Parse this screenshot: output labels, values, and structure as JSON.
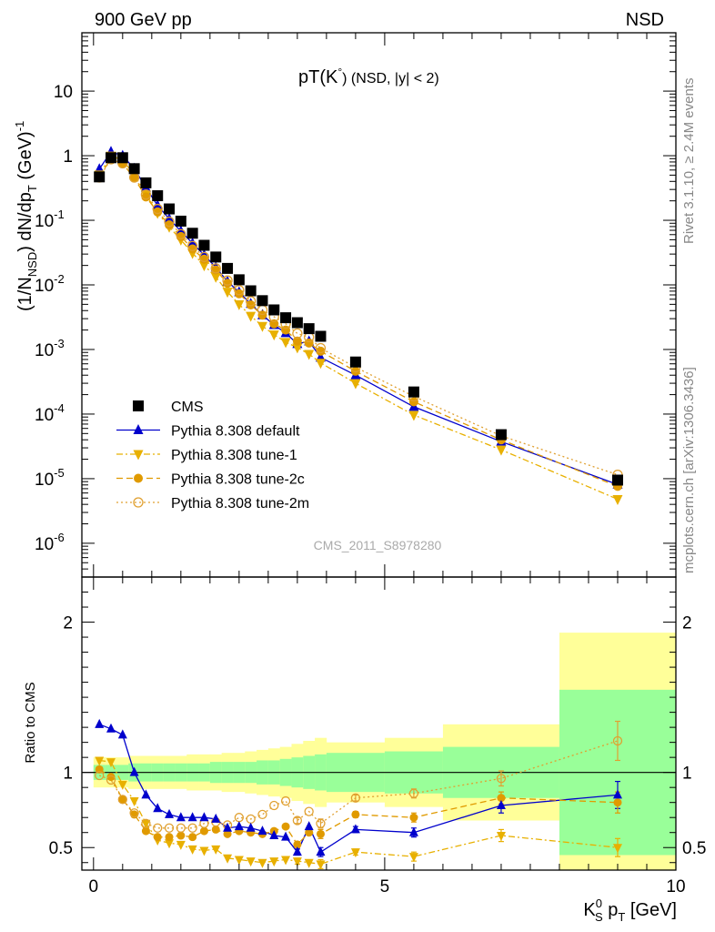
{
  "header": {
    "left_label": "900 GeV pp",
    "right_label": "NSD",
    "side_label_top": "Rivet 3.1.10, ≥ 2.4M events",
    "side_label_bottom": "mcplots.cern.ch [arXiv:1306.3436]",
    "watermark": "CMS_2011_S8978280"
  },
  "chart_data": [
    {
      "type": "scatter",
      "panel": "main",
      "title": "pT(K°) (NSD, |y| < 2)",
      "title_main": "pT(K",
      "title_sup": "°",
      "title_rest": ") (NSD, |y| < 2)",
      "ylabel": "(1/N_NSD) dN/dp_T (GeV)^-1",
      "ylabel_parts": {
        "a": "(1/N",
        "sub": "NSD",
        "b": ") dN/dp",
        "sub2": "T",
        "c": " (GeV)",
        "sup": "-1"
      },
      "yscale": "log",
      "ylim": [
        3e-07,
        80
      ],
      "xlim": [
        -0.2,
        10
      ],
      "y_tick_labels": [
        {
          "v": 10,
          "m": "10",
          "e": ""
        },
        {
          "v": 1,
          "m": "1",
          "e": ""
        },
        {
          "v": 0.1,
          "m": "10",
          "e": "-1"
        },
        {
          "v": 0.01,
          "m": "10",
          "e": "-2"
        },
        {
          "v": 0.001,
          "m": "10",
          "e": "-3"
        },
        {
          "v": 0.0001,
          "m": "10",
          "e": "-4"
        },
        {
          "v": 1e-05,
          "m": "10",
          "e": "-5"
        },
        {
          "v": 1e-06,
          "m": "10",
          "e": "-6"
        }
      ],
      "legend_position": "lower-left",
      "series": [
        {
          "name": "CMS",
          "color": "#000000",
          "marker": "square",
          "x": [
            0.1,
            0.3,
            0.5,
            0.7,
            0.9,
            1.1,
            1.3,
            1.5,
            1.7,
            1.9,
            2.1,
            2.3,
            2.5,
            2.7,
            2.9,
            3.1,
            3.3,
            3.5,
            3.7,
            3.9,
            4.5,
            5.5,
            7.0,
            9.0
          ],
          "y": [
            0.47,
            0.93,
            0.93,
            0.63,
            0.38,
            0.24,
            0.15,
            0.097,
            0.063,
            0.041,
            0.027,
            0.018,
            0.012,
            0.0081,
            0.0057,
            0.0041,
            0.0031,
            0.0026,
            0.0021,
            0.0016,
            0.00064,
            0.00022,
            4.8e-05,
            9.5e-06
          ]
        },
        {
          "name": "Pythia 8.308 default",
          "color": "#0000cc",
          "marker": "triangle-up",
          "line": "solid",
          "x": [
            0.1,
            0.3,
            0.5,
            0.7,
            0.9,
            1.1,
            1.3,
            1.5,
            1.7,
            1.9,
            2.1,
            2.3,
            2.5,
            2.7,
            2.9,
            3.1,
            3.3,
            3.5,
            3.7,
            3.9,
            4.5,
            5.5,
            7.0,
            9.0
          ],
          "y": [
            0.62,
            1.15,
            1.0,
            0.63,
            0.32,
            0.17,
            0.105,
            0.068,
            0.044,
            0.029,
            0.0187,
            0.0113,
            0.0077,
            0.0051,
            0.0034,
            0.0024,
            0.0018,
            0.00122,
            0.00134,
            0.00075,
            0.0004,
            0.00013,
            3.75e-05,
            8.1e-06
          ]
        },
        {
          "name": "Pythia 8.308 tune-1",
          "color": "#e8b000",
          "marker": "triangle-down",
          "line": "dashdot",
          "x": [
            0.1,
            0.3,
            0.5,
            0.7,
            0.9,
            1.1,
            1.3,
            1.5,
            1.7,
            1.9,
            2.1,
            2.3,
            2.5,
            2.7,
            2.9,
            3.1,
            3.3,
            3.5,
            3.7,
            3.9,
            4.5,
            5.5,
            7.0,
            9.0
          ],
          "y": [
            0.51,
            1.0,
            0.85,
            0.51,
            0.25,
            0.13,
            0.079,
            0.05,
            0.031,
            0.02,
            0.0133,
            0.0078,
            0.005,
            0.0033,
            0.0023,
            0.0017,
            0.0013,
            0.00107,
            0.00085,
            0.00062,
            0.0003,
            9.68e-05,
            2.8e-05,
            4.8e-06
          ]
        },
        {
          "name": "Pythia 8.308 tune-2c",
          "color": "#e09a00",
          "marker": "circle",
          "line": "dashed",
          "x": [
            0.1,
            0.3,
            0.5,
            0.7,
            0.9,
            1.1,
            1.3,
            1.5,
            1.7,
            1.9,
            2.1,
            2.3,
            2.5,
            2.7,
            2.9,
            3.1,
            3.3,
            3.5,
            3.7,
            3.9,
            4.5,
            5.5,
            7.0,
            9.0
          ],
          "y": [
            0.48,
            0.9,
            0.76,
            0.45,
            0.23,
            0.135,
            0.085,
            0.056,
            0.036,
            0.025,
            0.017,
            0.0106,
            0.0073,
            0.0049,
            0.0034,
            0.0025,
            0.002,
            0.00135,
            0.00126,
            0.00094,
            0.00046,
            0.000155,
            4e-05,
            7.6e-06
          ]
        },
        {
          "name": "Pythia 8.308 tune-2m",
          "color": "#e0a030",
          "marker": "open-circle",
          "line": "dotted",
          "x": [
            0.1,
            0.3,
            0.5,
            0.7,
            0.9,
            1.1,
            1.3,
            1.5,
            1.7,
            1.9,
            2.1,
            2.3,
            2.5,
            2.7,
            2.9,
            3.1,
            3.3,
            3.5,
            3.7,
            3.9,
            4.5,
            5.5,
            7.0,
            9.0
          ],
          "y": [
            0.46,
            0.88,
            0.76,
            0.46,
            0.25,
            0.15,
            0.095,
            0.061,
            0.04,
            0.027,
            0.018,
            0.0117,
            0.0083,
            0.0056,
            0.0041,
            0.0032,
            0.0025,
            0.00177,
            0.00155,
            0.00105,
            0.00053,
            0.000188,
            4.6e-05,
            1.15e-05
          ]
        }
      ]
    },
    {
      "type": "scatter",
      "panel": "ratio",
      "ylabel": "Ratio to CMS",
      "xlabel": "K_S^0 p_T [GeV]",
      "xlabel_parts": {
        "a": "K",
        "sub": "S",
        "sup": "0",
        "b": " p",
        "sub2": "T",
        "c": " [GeV]"
      },
      "xlim": [
        -0.2,
        10
      ],
      "ylim": [
        0.35,
        2.3
      ],
      "x_ticks": [
        0,
        5,
        10
      ],
      "y_ticks": [
        0.5,
        1,
        2
      ],
      "reference_line": 1,
      "bins": [
        {
          "x0": 0.0,
          "x1": 0.2,
          "g": 0.05,
          "y": 0.1
        },
        {
          "x0": 0.2,
          "x1": 0.4,
          "g": 0.05,
          "y": 0.1
        },
        {
          "x0": 0.4,
          "x1": 0.6,
          "g": 0.05,
          "y": 0.1
        },
        {
          "x0": 0.6,
          "x1": 0.8,
          "g": 0.06,
          "y": 0.11
        },
        {
          "x0": 0.8,
          "x1": 1.0,
          "g": 0.06,
          "y": 0.11
        },
        {
          "x0": 1.0,
          "x1": 1.2,
          "g": 0.06,
          "y": 0.11
        },
        {
          "x0": 1.2,
          "x1": 1.4,
          "g": 0.06,
          "y": 0.11
        },
        {
          "x0": 1.4,
          "x1": 1.6,
          "g": 0.06,
          "y": 0.11
        },
        {
          "x0": 1.6,
          "x1": 1.8,
          "g": 0.06,
          "y": 0.12
        },
        {
          "x0": 1.8,
          "x1": 2.0,
          "g": 0.06,
          "y": 0.12
        },
        {
          "x0": 2.0,
          "x1": 2.2,
          "g": 0.07,
          "y": 0.12
        },
        {
          "x0": 2.2,
          "x1": 2.4,
          "g": 0.07,
          "y": 0.13
        },
        {
          "x0": 2.4,
          "x1": 2.6,
          "g": 0.07,
          "y": 0.13
        },
        {
          "x0": 2.6,
          "x1": 2.8,
          "g": 0.07,
          "y": 0.14
        },
        {
          "x0": 2.8,
          "x1": 3.0,
          "g": 0.08,
          "y": 0.15
        },
        {
          "x0": 3.0,
          "x1": 3.2,
          "g": 0.08,
          "y": 0.16
        },
        {
          "x0": 3.2,
          "x1": 3.4,
          "g": 0.09,
          "y": 0.17
        },
        {
          "x0": 3.4,
          "x1": 3.6,
          "g": 0.1,
          "y": 0.19
        },
        {
          "x0": 3.6,
          "x1": 3.8,
          "g": 0.11,
          "y": 0.21
        },
        {
          "x0": 3.8,
          "x1": 4.0,
          "g": 0.12,
          "y": 0.23
        },
        {
          "x0": 4.0,
          "x1": 5.0,
          "g": 0.13,
          "y": 0.2
        },
        {
          "x0": 5.0,
          "x1": 6.0,
          "g": 0.14,
          "y": 0.23
        },
        {
          "x0": 6.0,
          "x1": 8.0,
          "g": 0.17,
          "y": 0.32
        },
        {
          "x0": 8.0,
          "x1": 10.0,
          "g": 0.55,
          "y": 0.93
        }
      ],
      "series": [
        {
          "name": "Pythia 8.308 default",
          "color": "#0000cc",
          "marker": "triangle-up",
          "line": "solid",
          "x": [
            0.1,
            0.3,
            0.5,
            0.7,
            0.9,
            1.1,
            1.3,
            1.5,
            1.7,
            1.9,
            2.1,
            2.3,
            2.5,
            2.7,
            2.9,
            3.1,
            3.3,
            3.5,
            3.7,
            3.9,
            4.5,
            5.5,
            7.0,
            9.0
          ],
          "y": [
            1.32,
            1.29,
            1.25,
            1.0,
            0.85,
            0.76,
            0.72,
            0.7,
            0.7,
            0.7,
            0.69,
            0.63,
            0.64,
            0.63,
            0.61,
            0.58,
            0.57,
            0.47,
            0.64,
            0.47,
            0.62,
            0.6,
            0.78,
            0.85
          ],
          "err": [
            0,
            0,
            0,
            0,
            0,
            0,
            0,
            0,
            0,
            0,
            0,
            0,
            0,
            0,
            0,
            0,
            0,
            0.02,
            0,
            0.03,
            0.02,
            0.03,
            0.05,
            0.09
          ]
        },
        {
          "name": "Pythia 8.308 tune-1",
          "color": "#e8b000",
          "marker": "triangle-down",
          "line": "dashdot",
          "x": [
            0.1,
            0.3,
            0.5,
            0.7,
            0.9,
            1.1,
            1.3,
            1.5,
            1.7,
            1.9,
            2.1,
            2.3,
            2.5,
            2.7,
            2.9,
            3.1,
            3.3,
            3.5,
            3.7,
            3.9,
            4.5,
            5.5,
            7.0,
            9.0
          ],
          "y": [
            1.08,
            1.07,
            0.92,
            0.81,
            0.66,
            0.55,
            0.53,
            0.52,
            0.49,
            0.48,
            0.49,
            0.43,
            0.42,
            0.41,
            0.4,
            0.41,
            0.42,
            0.41,
            0.4,
            0.39,
            0.47,
            0.44,
            0.58,
            0.5
          ],
          "err": [
            0,
            0,
            0,
            0,
            0,
            0,
            0,
            0,
            0,
            0,
            0,
            0,
            0,
            0,
            0,
            0,
            0,
            0.02,
            0,
            0.03,
            0.02,
            0.03,
            0.04,
            0.06
          ]
        },
        {
          "name": "Pythia 8.308 tune-2c",
          "color": "#e09a00",
          "marker": "circle",
          "line": "dashed",
          "x": [
            0.1,
            0.3,
            0.5,
            0.7,
            0.9,
            1.1,
            1.3,
            1.5,
            1.7,
            1.9,
            2.1,
            2.3,
            2.5,
            2.7,
            2.9,
            3.1,
            3.3,
            3.5,
            3.7,
            3.9,
            4.5,
            5.5,
            7.0,
            9.0
          ],
          "y": [
            1.02,
            0.97,
            0.82,
            0.72,
            0.61,
            0.57,
            0.57,
            0.58,
            0.57,
            0.61,
            0.62,
            0.59,
            0.61,
            0.6,
            0.59,
            0.61,
            0.64,
            0.52,
            0.6,
            0.59,
            0.72,
            0.7,
            0.83,
            0.8
          ],
          "err": [
            0,
            0,
            0,
            0,
            0,
            0,
            0,
            0,
            0,
            0,
            0,
            0,
            0,
            0,
            0,
            0,
            0,
            0.02,
            0,
            0.03,
            0.02,
            0.03,
            0.04,
            0.07
          ]
        },
        {
          "name": "Pythia 8.308 tune-2m",
          "color": "#e0a030",
          "marker": "open-circle",
          "line": "dotted",
          "x": [
            0.1,
            0.3,
            0.5,
            0.7,
            0.9,
            1.1,
            1.3,
            1.5,
            1.7,
            1.9,
            2.1,
            2.3,
            2.5,
            2.7,
            2.9,
            3.1,
            3.3,
            3.5,
            3.7,
            3.9,
            4.5,
            5.5,
            7.0,
            9.0
          ],
          "y": [
            0.98,
            0.95,
            0.82,
            0.73,
            0.66,
            0.63,
            0.63,
            0.63,
            0.63,
            0.66,
            0.67,
            0.65,
            0.7,
            0.69,
            0.72,
            0.78,
            0.81,
            0.68,
            0.74,
            0.66,
            0.83,
            0.86,
            0.96,
            1.21
          ],
          "err": [
            0,
            0,
            0,
            0,
            0,
            0,
            0,
            0,
            0,
            0,
            0,
            0,
            0,
            0,
            0,
            0,
            0,
            0.02,
            0,
            0.03,
            0.02,
            0.03,
            0.05,
            0.13
          ]
        }
      ]
    }
  ]
}
